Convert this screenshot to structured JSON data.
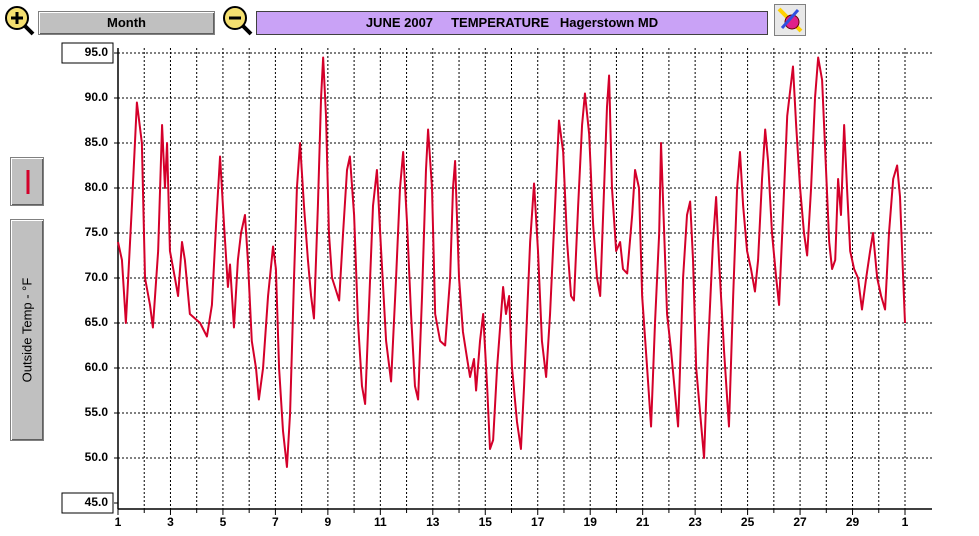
{
  "toolbar": {
    "period": "Month"
  },
  "chart_data": {
    "type": "line",
    "title": "JUNE 2007     TEMPERATURE   Hagerstown MD",
    "x": [
      1.0,
      1.15,
      1.3,
      1.53,
      1.72,
      1.91,
      2.03,
      2.22,
      2.33,
      2.53,
      2.68,
      2.79,
      2.87,
      2.98,
      3.17,
      3.29,
      3.44,
      3.55,
      3.74,
      4.13,
      4.39,
      4.58,
      4.74,
      4.89,
      5.04,
      5.19,
      5.27,
      5.42,
      5.57,
      5.69,
      5.84,
      5.95,
      6.1,
      6.26,
      6.37,
      6.53,
      6.72,
      6.91,
      7.02,
      7.14,
      7.29,
      7.44,
      7.56,
      7.71,
      7.82,
      7.94,
      8.09,
      8.24,
      8.36,
      8.47,
      8.62,
      8.74,
      8.82,
      8.93,
      9.04,
      9.16,
      9.27,
      9.43,
      9.58,
      9.73,
      9.84,
      10.0,
      10.15,
      10.3,
      10.42,
      10.57,
      10.72,
      10.87,
      11.03,
      11.22,
      11.41,
      11.6,
      11.75,
      11.87,
      12.02,
      12.17,
      12.32,
      12.44,
      12.59,
      12.74,
      12.82,
      12.97,
      13.09,
      13.28,
      13.47,
      13.66,
      13.77,
      13.85,
      14.0,
      14.15,
      14.31,
      14.42,
      14.57,
      14.65,
      14.8,
      14.92,
      15.07,
      15.18,
      15.3,
      15.45,
      15.68,
      15.79,
      15.91,
      16.02,
      16.21,
      16.36,
      16.48,
      16.71,
      16.86,
      17.01,
      17.16,
      17.32,
      17.47,
      17.66,
      17.81,
      17.97,
      18.12,
      18.27,
      18.38,
      18.54,
      18.69,
      18.8,
      18.96,
      19.11,
      19.26,
      19.38,
      19.53,
      19.64,
      19.72,
      19.83,
      19.99,
      20.14,
      20.25,
      20.41,
      20.6,
      20.71,
      20.86,
      20.98,
      21.17,
      21.32,
      21.47,
      21.63,
      21.7,
      21.82,
      21.93,
      22.08,
      22.24,
      22.35,
      22.54,
      22.69,
      22.81,
      22.92,
      23.04,
      23.19,
      23.34,
      23.49,
      23.68,
      23.8,
      23.91,
      24.1,
      24.29,
      24.45,
      24.6,
      24.71,
      24.83,
      24.98,
      25.13,
      25.28,
      25.4,
      25.55,
      25.67,
      25.78,
      25.93,
      26.09,
      26.2,
      26.35,
      26.51,
      26.73,
      26.85,
      27.0,
      27.15,
      27.27,
      27.42,
      27.57,
      27.69,
      27.84,
      27.99,
      28.11,
      28.22,
      28.34,
      28.45,
      28.56,
      28.68,
      28.79,
      28.91,
      29.06,
      29.21,
      29.36,
      29.52,
      29.67,
      29.78,
      29.94,
      30.09,
      30.24,
      30.39,
      30.55,
      30.7,
      30.81,
      30.93,
      31.0
    ],
    "series": [
      {
        "name": "Outside Temp - °F",
        "color": "#d4002a",
        "values": [
          74,
          72,
          65,
          78,
          89.5,
          85,
          70,
          67,
          64.5,
          73,
          87,
          80,
          85,
          73,
          70,
          68,
          74,
          72,
          66,
          65,
          63.5,
          67,
          76,
          83.5,
          76,
          69,
          71.5,
          64.5,
          72,
          75,
          77,
          72,
          63,
          60,
          56.5,
          60,
          68,
          73.5,
          71,
          60,
          53,
          49,
          55,
          70,
          80,
          85,
          78,
          72,
          68,
          65.5,
          78,
          90,
          94.5,
          88,
          75,
          70,
          69,
          67.5,
          75,
          82,
          83.5,
          77,
          65,
          58,
          56,
          67,
          78,
          82,
          73,
          63,
          58.5,
          70,
          80,
          84,
          76,
          66,
          58,
          56.5,
          68,
          82,
          86.5,
          80,
          66,
          63,
          62.5,
          70,
          80,
          83,
          70,
          64,
          61,
          59,
          61,
          57.5,
          63,
          66,
          58,
          51,
          52,
          60,
          69,
          66,
          68,
          60,
          54,
          51,
          58,
          74,
          80.5,
          73,
          63,
          59,
          66,
          78,
          87.5,
          84,
          74,
          68,
          67.5,
          78,
          87,
          90.5,
          86,
          76,
          70,
          68,
          80,
          89,
          92.5,
          80,
          73,
          74,
          71,
          70.5,
          77,
          82,
          80,
          68,
          60,
          53.5,
          65,
          75,
          85,
          75,
          66,
          62,
          57,
          53.5,
          70,
          77,
          78.5,
          72,
          60,
          55,
          50,
          62,
          74,
          79,
          72,
          62,
          53.5,
          68,
          80,
          84,
          78,
          73,
          71,
          68.5,
          72,
          81,
          86.5,
          83,
          75,
          70,
          67,
          77,
          88,
          93.5,
          87,
          80,
          75,
          72.5,
          80,
          90,
          94.5,
          92,
          82,
          74,
          71,
          72,
          81,
          77,
          87,
          80,
          73,
          71,
          70,
          66.5,
          70,
          73,
          75,
          70,
          68,
          66.5,
          75,
          81,
          82.5,
          79,
          70,
          65
        ]
      }
    ],
    "xlim": [
      1,
      31
    ],
    "xticks": [
      1,
      3,
      5,
      7,
      9,
      11,
      13,
      15,
      17,
      19,
      21,
      23,
      25,
      27,
      29,
      {
        "value": 31,
        "label": "1"
      }
    ],
    "x_minor_ticks": [
      2,
      4,
      6,
      8,
      10,
      12,
      14,
      16,
      18,
      20,
      22,
      24,
      26,
      28,
      30
    ],
    "ylim": [
      45,
      95
    ],
    "yticks": [
      {
        "value": 95,
        "label": "95.0"
      },
      {
        "value": 90,
        "label": "90.0"
      },
      {
        "value": 85,
        "label": "85.0"
      },
      {
        "value": 80,
        "label": "80.0"
      },
      {
        "value": 75,
        "label": "75.0"
      },
      {
        "value": 70,
        "label": "70.0"
      },
      {
        "value": 65,
        "label": "65.0"
      },
      {
        "value": 60,
        "label": "60.0"
      },
      {
        "value": 55,
        "label": "55.0"
      },
      {
        "value": 50,
        "label": "50.0"
      },
      {
        "value": 45,
        "label": "45.0"
      }
    ],
    "grid": true
  }
}
